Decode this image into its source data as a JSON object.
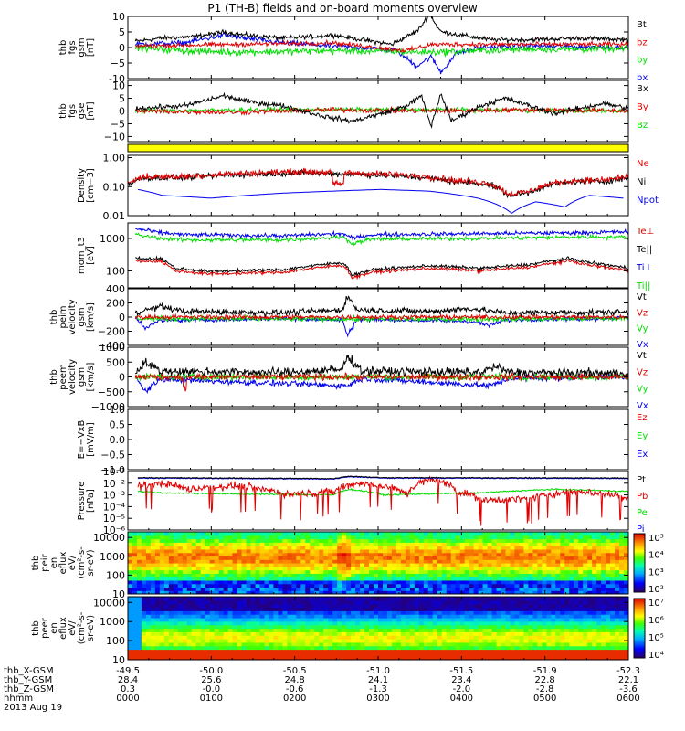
{
  "title": "P1 (TH-B) fields and on-board moments overview",
  "colors": {
    "black": "#000000",
    "red": "#e00000",
    "green": "#00dd00",
    "blue": "#0000ee",
    "yellow": "#ffff00"
  },
  "chart_data": [
    {
      "id": "fgs_gsm",
      "type": "line",
      "ylabel": [
        "thb",
        "fgs",
        "gsm",
        "[nT]"
      ],
      "ylim": [
        -10,
        10
      ],
      "yticks": [
        -10,
        -5,
        0,
        5,
        10
      ],
      "yticklabels": [
        "-10",
        "−5",
        "0",
        "5",
        "10"
      ],
      "legend": [
        "Bt",
        "bz",
        "by",
        "bx"
      ],
      "legend_colors": [
        "#000000",
        "#e00000",
        "#00dd00",
        "#0000ee"
      ]
    },
    {
      "id": "fgs_gse",
      "type": "line",
      "ylabel": [
        "thb",
        "fgs",
        "gse",
        "[nT]"
      ],
      "ylim": [
        -12,
        12
      ],
      "yticks": [
        -10,
        -5,
        0,
        5,
        10
      ],
      "yticklabels": [
        "−10",
        "−5",
        "0",
        "5",
        "10"
      ],
      "legend": [
        "Bx",
        "By",
        "Bz"
      ],
      "legend_colors": [
        "#000000",
        "#e00000",
        "#00dd00"
      ]
    },
    {
      "id": "quality",
      "type": "bar",
      "legend": []
    },
    {
      "id": "density",
      "type": "line",
      "scale": "log",
      "ylabel": [
        "Density",
        "[cm−3]"
      ],
      "ylim": [
        0.01,
        1.2
      ],
      "yticks": [
        0.01,
        0.1,
        1.0
      ],
      "yticklabels": [
        "0.01",
        "0.10",
        "1.00"
      ],
      "legend": [
        "Ne",
        "Ni",
        "Npot"
      ],
      "legend_colors": [
        "#e00000",
        "#000000",
        "#0000ee"
      ]
    },
    {
      "id": "temperature",
      "type": "line",
      "scale": "log",
      "ylabel": [
        "mom_t3",
        "[eV]"
      ],
      "ylim": [
        30,
        3000
      ],
      "yticks": [
        100,
        1000
      ],
      "yticklabels": [
        "100",
        "1000"
      ],
      "legend": [
        "Te⊥",
        "Te||",
        "Ti⊥",
        "Ti||"
      ],
      "legend_colors": [
        "#e00000",
        "#000000",
        "#0000ee",
        "#00dd00"
      ]
    },
    {
      "id": "peim_velocity",
      "type": "line",
      "ylabel": [
        "thb",
        "peim",
        "velocity",
        "gsm",
        "[km/s]"
      ],
      "ylim": [
        -400,
        400
      ],
      "yticks": [
        -400,
        -200,
        0,
        200,
        400
      ],
      "yticklabels": [
        "−400",
        "−200",
        "0",
        "200",
        "400"
      ],
      "legend": [
        "Vt",
        "Vz",
        "Vy",
        "Vx"
      ],
      "legend_colors": [
        "#000000",
        "#e00000",
        "#00dd00",
        "#0000ee"
      ]
    },
    {
      "id": "peem_velocity",
      "type": "line",
      "ylabel": [
        "thb",
        "peem",
        "velocity",
        "gsm",
        "[km/s]"
      ],
      "ylim": [
        -1000,
        1000
      ],
      "yticks": [
        -1000,
        -500,
        0,
        500,
        1000
      ],
      "yticklabels": [
        "−1000",
        "−500",
        "0",
        "500",
        "1000"
      ],
      "legend": [
        "Vt",
        "Vz",
        "Vy",
        "Vx"
      ],
      "legend_colors": [
        "#000000",
        "#e00000",
        "#00dd00",
        "#0000ee"
      ]
    },
    {
      "id": "efield",
      "type": "line",
      "ylabel": [
        "E=−VxB",
        "[mV/m]"
      ],
      "ylim": [
        -1,
        1
      ],
      "yticks": [
        -1.0,
        -0.5,
        0.0,
        0.5,
        1.0
      ],
      "yticklabels": [
        "−1.0",
        "−0.5",
        "0.0",
        "0.5",
        "1.0"
      ],
      "legend": [
        "Ez",
        "Ey",
        "Ex"
      ],
      "legend_colors": [
        "#e00000",
        "#00dd00",
        "#0000ee"
      ]
    },
    {
      "id": "pressure",
      "type": "line",
      "scale": "log",
      "ylabel": [
        "Pressure",
        "[nPa]"
      ],
      "ylim": [
        1e-06,
        0.1
      ],
      "yticks": [
        1e-06,
        1e-05,
        0.0001,
        0.001,
        0.01,
        0.1
      ],
      "yticklabels": [
        "10⁻⁶",
        "10⁻⁵",
        "10⁻⁴",
        "10⁻³",
        "10⁻²",
        "10⁻¹"
      ],
      "legend": [
        "Pt",
        "Pb",
        "Pe",
        "Pi"
      ],
      "legend_colors": [
        "#000000",
        "#e00000",
        "#00dd00",
        "#0000ee"
      ]
    },
    {
      "id": "peir_spectrogram",
      "type": "heatmap",
      "scale": "log",
      "ylabel": [
        "thb",
        "peir",
        "en",
        "eflux",
        "eV/",
        "(cm²-s-",
        "sr-eV)"
      ],
      "ylim": [
        10,
        20000
      ],
      "yticks": [
        10,
        100,
        1000,
        10000
      ],
      "yticklabels": [
        "10",
        "100",
        "1000",
        "10000"
      ],
      "colorbar": [
        "10²",
        "10³",
        "10⁴",
        "10⁵"
      ]
    },
    {
      "id": "peer_spectrogram",
      "type": "heatmap",
      "scale": "log",
      "ylabel": [
        "thb",
        "peer",
        "en",
        "eflux",
        "eV/",
        "(cm²-s-",
        "sr-eV)"
      ],
      "ylim": [
        10,
        20000
      ],
      "yticks": [
        10,
        100,
        1000,
        10000
      ],
      "yticklabels": [
        "10",
        "100",
        "1000",
        "10000"
      ],
      "colorbar": [
        "10⁴",
        "10⁵",
        "10⁶",
        "10⁷"
      ]
    }
  ],
  "x_axis": {
    "rows": [
      {
        "label": "thb_X-GSM",
        "values": [
          "-49.5",
          "-50.0",
          "-50.5",
          "-51.0",
          "-51.5",
          "-51.9",
          "-52.3"
        ]
      },
      {
        "label": "thb_Y-GSM",
        "values": [
          "28.4",
          "25.6",
          "24.8",
          "24.1",
          "23.4",
          "22.8",
          "22.1"
        ]
      },
      {
        "label": "thb_Z-GSM",
        "values": [
          "0.3",
          "-0.0",
          "-0.6",
          "-1.3",
          "-2.0",
          "-2.8",
          "-3.6"
        ]
      },
      {
        "label": "hhmm",
        "values": [
          "0000",
          "0100",
          "0200",
          "0300",
          "0400",
          "0500",
          "0600"
        ]
      }
    ],
    "date": "2013 Aug 19"
  }
}
